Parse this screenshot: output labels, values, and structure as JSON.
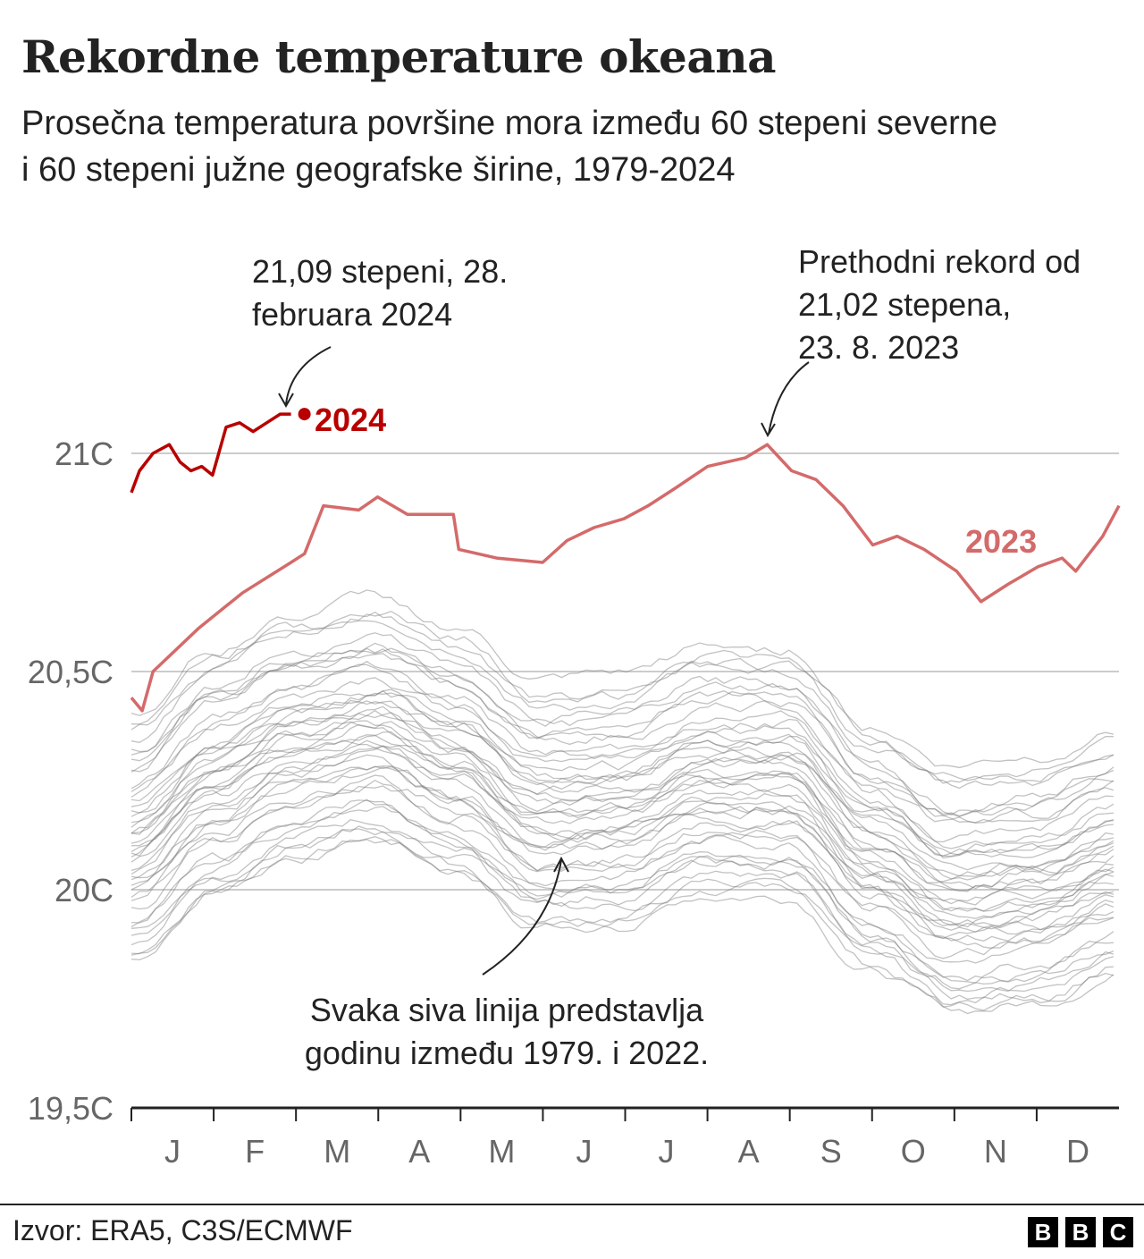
{
  "chart_data": {
    "type": "line",
    "title": "Rekordne temperature okeana",
    "subtitle": "Prosečna temperatura površine mora između 60 stepeni severne i 60 stepeni južne geografske širine, 1979-2024",
    "ylim": [
      19.5,
      21.0
    ],
    "y_ticks": [
      {
        "v": 21.0,
        "label": "21C"
      },
      {
        "v": 20.5,
        "label": "20,5C"
      },
      {
        "v": 20.0,
        "label": "20C"
      },
      {
        "v": 19.5,
        "label": "19,5C"
      }
    ],
    "x_ticks": [
      "J",
      "F",
      "M",
      "A",
      "M",
      "J",
      "J",
      "A",
      "S",
      "O",
      "N",
      "D"
    ],
    "grid": true,
    "x_unit": "day of year",
    "colors": {
      "2024": "#b80000",
      "2023": "#d46a6a",
      "grey": "#aaaaaa"
    },
    "highlight": [
      {
        "name": "2024",
        "points": [
          [
            0,
            20.91
          ],
          [
            3,
            20.96
          ],
          [
            8,
            21.0
          ],
          [
            14,
            21.02
          ],
          [
            18,
            20.98
          ],
          [
            22,
            20.96
          ],
          [
            26,
            20.97
          ],
          [
            30,
            20.95
          ],
          [
            35,
            21.06
          ],
          [
            40,
            21.07
          ],
          [
            45,
            21.05
          ],
          [
            50,
            21.07
          ],
          [
            55,
            21.09
          ],
          [
            59,
            21.09
          ]
        ]
      },
      {
        "name": "2023",
        "points": [
          [
            0,
            20.44
          ],
          [
            4,
            20.41
          ],
          [
            8,
            20.5
          ],
          [
            25,
            20.6
          ],
          [
            41,
            20.68
          ],
          [
            59,
            20.75
          ],
          [
            64,
            20.77
          ],
          [
            71,
            20.88
          ],
          [
            84,
            20.87
          ],
          [
            91,
            20.9
          ],
          [
            102,
            20.86
          ],
          [
            119,
            20.86
          ],
          [
            121,
            20.78
          ],
          [
            135,
            20.76
          ],
          [
            152,
            20.75
          ],
          [
            161,
            20.8
          ],
          [
            171,
            20.83
          ],
          [
            182,
            20.85
          ],
          [
            191,
            20.88
          ],
          [
            201,
            20.92
          ],
          [
            213,
            20.97
          ],
          [
            227,
            20.99
          ],
          [
            235,
            21.02
          ],
          [
            244,
            20.96
          ],
          [
            253,
            20.94
          ],
          [
            263,
            20.88
          ],
          [
            274,
            20.79
          ],
          [
            283,
            20.81
          ],
          [
            293,
            20.78
          ],
          [
            305,
            20.73
          ],
          [
            314,
            20.66
          ],
          [
            324,
            20.7
          ],
          [
            335,
            20.74
          ],
          [
            344,
            20.76
          ],
          [
            349,
            20.73
          ],
          [
            359,
            20.81
          ],
          [
            365,
            20.88
          ]
        ]
      }
    ],
    "grey_days": [
      0,
      31,
      59,
      90,
      120,
      151,
      181,
      212,
      243,
      273,
      304,
      334,
      365
    ],
    "grey_series": [
      [
        19.85,
        20.0,
        20.08,
        20.12,
        20.05,
        19.92,
        19.93,
        20.0,
        20.0,
        19.83,
        19.73,
        19.75,
        19.82
      ],
      [
        19.9,
        20.05,
        20.13,
        20.17,
        20.1,
        19.97,
        19.98,
        20.05,
        20.05,
        19.88,
        19.78,
        19.8,
        19.87
      ],
      [
        19.84,
        19.99,
        20.07,
        20.11,
        20.04,
        19.91,
        19.92,
        19.99,
        19.99,
        19.82,
        19.72,
        19.74,
        19.81
      ],
      [
        19.92,
        20.07,
        20.15,
        20.19,
        20.12,
        19.99,
        20.0,
        20.07,
        20.07,
        19.9,
        19.8,
        19.82,
        19.89
      ],
      [
        20.0,
        20.15,
        20.23,
        20.27,
        20.2,
        20.07,
        20.08,
        20.15,
        20.15,
        19.98,
        19.88,
        19.9,
        19.97
      ],
      [
        19.88,
        20.03,
        20.11,
        20.15,
        20.08,
        19.95,
        19.96,
        20.03,
        20.03,
        19.86,
        19.76,
        19.78,
        19.85
      ],
      [
        19.86,
        20.01,
        20.09,
        20.13,
        20.06,
        19.93,
        19.94,
        20.01,
        20.01,
        19.84,
        19.74,
        19.76,
        19.83
      ],
      [
        19.91,
        20.06,
        20.14,
        20.18,
        20.11,
        19.98,
        19.99,
        20.06,
        20.06,
        19.89,
        19.79,
        19.81,
        19.88
      ],
      [
        20.02,
        20.17,
        20.25,
        20.29,
        20.22,
        20.09,
        20.1,
        20.17,
        20.17,
        20.0,
        19.9,
        19.92,
        19.99
      ],
      [
        19.98,
        20.13,
        20.21,
        20.25,
        20.18,
        20.05,
        20.06,
        20.13,
        20.13,
        19.96,
        19.86,
        19.88,
        19.95
      ],
      [
        19.93,
        20.08,
        20.16,
        20.2,
        20.13,
        20.0,
        20.01,
        20.08,
        20.08,
        19.91,
        19.81,
        19.83,
        19.9
      ],
      [
        20.03,
        20.18,
        20.26,
        20.3,
        20.23,
        20.1,
        20.11,
        20.18,
        20.18,
        20.01,
        19.91,
        19.93,
        20.0
      ],
      [
        20.01,
        20.16,
        20.24,
        20.28,
        20.21,
        20.08,
        20.09,
        20.16,
        20.16,
        19.99,
        19.89,
        19.91,
        19.98
      ],
      [
        19.96,
        20.11,
        20.19,
        20.23,
        20.16,
        20.03,
        20.04,
        20.11,
        20.11,
        19.94,
        19.84,
        19.86,
        19.93
      ],
      [
        19.99,
        20.14,
        20.22,
        20.26,
        20.19,
        20.06,
        20.07,
        20.14,
        20.14,
        19.97,
        19.87,
        19.89,
        19.96
      ],
      [
        20.04,
        20.19,
        20.27,
        20.31,
        20.24,
        20.11,
        20.12,
        20.19,
        20.19,
        20.02,
        19.92,
        19.94,
        20.01
      ],
      [
        20.06,
        20.21,
        20.29,
        20.33,
        20.26,
        20.13,
        20.14,
        20.21,
        20.21,
        20.04,
        19.94,
        19.96,
        20.03
      ],
      [
        20.05,
        20.2,
        20.28,
        20.32,
        20.25,
        20.12,
        20.13,
        20.2,
        20.2,
        20.03,
        19.93,
        19.95,
        20.02
      ],
      [
        20.12,
        20.27,
        20.35,
        20.39,
        20.32,
        20.19,
        20.2,
        20.27,
        20.27,
        20.1,
        20.0,
        20.02,
        20.09
      ],
      [
        20.15,
        20.3,
        20.38,
        20.42,
        20.35,
        20.22,
        20.23,
        20.3,
        20.3,
        20.13,
        20.03,
        20.05,
        20.12
      ],
      [
        20.07,
        20.22,
        20.3,
        20.34,
        20.27,
        20.14,
        20.15,
        20.22,
        20.22,
        20.05,
        19.95,
        19.97,
        20.04
      ],
      [
        20.08,
        20.23,
        20.31,
        20.35,
        20.28,
        20.15,
        20.16,
        20.23,
        20.23,
        20.06,
        19.96,
        19.98,
        20.05
      ],
      [
        20.11,
        20.26,
        20.34,
        20.38,
        20.31,
        20.18,
        20.19,
        20.26,
        20.26,
        20.09,
        19.99,
        20.01,
        20.08
      ],
      [
        20.14,
        20.29,
        20.37,
        20.41,
        20.34,
        20.21,
        20.22,
        20.29,
        20.29,
        20.12,
        20.02,
        20.04,
        20.11
      ],
      [
        20.16,
        20.31,
        20.39,
        20.43,
        20.36,
        20.23,
        20.24,
        20.31,
        20.31,
        20.14,
        20.04,
        20.06,
        20.13
      ],
      [
        20.13,
        20.28,
        20.36,
        20.4,
        20.33,
        20.2,
        20.21,
        20.28,
        20.28,
        20.11,
        20.01,
        20.03,
        20.1
      ],
      [
        20.17,
        20.32,
        20.4,
        20.44,
        20.37,
        20.24,
        20.25,
        20.32,
        20.32,
        20.15,
        20.05,
        20.07,
        20.14
      ],
      [
        20.1,
        20.25,
        20.33,
        20.37,
        20.3,
        20.17,
        20.18,
        20.25,
        20.25,
        20.08,
        19.98,
        20.0,
        20.07
      ],
      [
        20.18,
        20.33,
        20.41,
        20.45,
        20.38,
        20.25,
        20.26,
        20.33,
        20.33,
        20.16,
        20.06,
        20.08,
        20.15
      ],
      [
        20.09,
        20.24,
        20.32,
        20.36,
        20.29,
        20.16,
        20.17,
        20.24,
        20.24,
        20.07,
        19.97,
        19.99,
        20.06
      ],
      [
        20.19,
        20.34,
        20.42,
        20.46,
        20.39,
        20.26,
        20.27,
        20.34,
        20.34,
        20.17,
        20.07,
        20.09,
        20.16
      ],
      [
        20.24,
        20.39,
        20.47,
        20.51,
        20.44,
        20.31,
        20.32,
        20.39,
        20.39,
        20.22,
        20.12,
        20.14,
        20.21
      ],
      [
        20.2,
        20.35,
        20.43,
        20.47,
        20.4,
        20.27,
        20.28,
        20.35,
        20.35,
        20.18,
        20.08,
        20.1,
        20.17
      ],
      [
        20.22,
        20.37,
        20.45,
        20.49,
        20.42,
        20.29,
        20.3,
        20.37,
        20.37,
        20.2,
        20.1,
        20.12,
        20.19
      ],
      [
        20.23,
        20.38,
        20.46,
        20.5,
        20.43,
        20.3,
        20.31,
        20.38,
        20.38,
        20.21,
        20.11,
        20.13,
        20.2
      ],
      [
        20.27,
        20.42,
        20.5,
        20.54,
        20.47,
        20.34,
        20.35,
        20.42,
        20.42,
        20.25,
        20.15,
        20.17,
        20.24
      ],
      [
        20.35,
        20.5,
        20.58,
        20.62,
        20.55,
        20.42,
        20.43,
        20.5,
        20.5,
        20.33,
        20.23,
        20.25,
        20.32
      ],
      [
        20.4,
        20.55,
        20.63,
        20.67,
        20.6,
        20.47,
        20.48,
        20.55,
        20.55,
        20.38,
        20.28,
        20.3,
        20.37
      ],
      [
        20.32,
        20.47,
        20.55,
        20.59,
        20.52,
        20.39,
        20.4,
        20.47,
        20.47,
        20.3,
        20.2,
        20.22,
        20.29
      ],
      [
        20.28,
        20.43,
        20.51,
        20.55,
        20.48,
        20.35,
        20.36,
        20.43,
        20.43,
        20.26,
        20.16,
        20.18,
        20.25
      ],
      [
        20.36,
        20.51,
        20.59,
        20.63,
        20.56,
        20.43,
        20.44,
        20.51,
        20.51,
        20.34,
        20.24,
        20.26,
        20.33
      ],
      [
        20.38,
        20.53,
        20.61,
        20.65,
        20.58,
        20.45,
        20.46,
        20.53,
        20.53,
        20.36,
        20.26,
        20.28,
        20.35
      ],
      [
        20.29,
        20.44,
        20.52,
        20.56,
        20.49,
        20.36,
        20.37,
        20.44,
        20.44,
        20.27,
        20.17,
        20.19,
        20.26
      ],
      [
        20.3,
        20.45,
        20.53,
        20.57,
        20.5,
        20.37,
        20.38,
        20.45,
        20.45,
        20.28,
        20.18,
        20.2,
        20.27
      ]
    ],
    "labels": {
      "s2024": "2024",
      "s2023": "2023"
    },
    "annotations": {
      "a2024": [
        "21,09 stepeni, 28.",
        "februara 2024"
      ],
      "a2023": [
        "Prethodni rekord od",
        "21,02 stepena,",
        "23. 8. 2023"
      ],
      "grey": [
        "Svaka siva linija predstavlja",
        "godinu između 1979. i 2022."
      ]
    }
  },
  "footer": {
    "source": "Izvor: ERA5, C3S/ECMWF",
    "logo": [
      "B",
      "B",
      "C"
    ]
  }
}
